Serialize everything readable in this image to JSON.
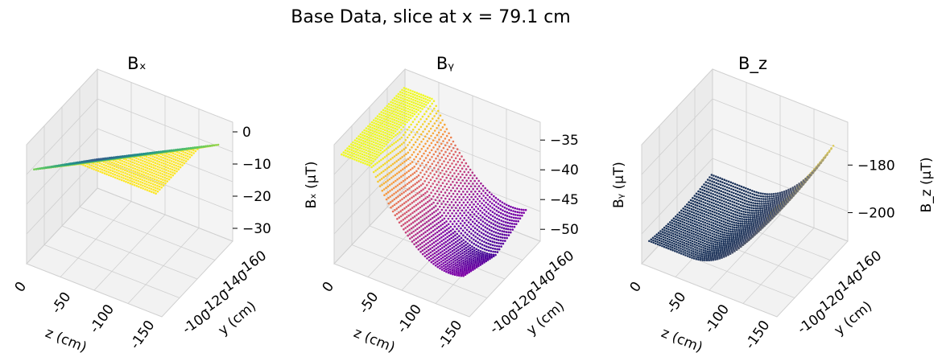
{
  "figure": {
    "suptitle": "Base Data, slice at x = 79.1 cm"
  },
  "chart_data": [
    {
      "type": "scatter3d",
      "title": "Bₓ",
      "colormap": "viridis",
      "xlabel": "z (cm)",
      "ylabel": "y (cm)",
      "zlabel": "Bₓ (µT)",
      "x_ticks": [
        "0",
        "-50",
        "-100",
        "-150"
      ],
      "y_ticks": [
        "-100",
        "-120",
        "-140",
        "-160"
      ],
      "z_ticks": [
        "0",
        "−10",
        "−20",
        "−30"
      ],
      "xlim": [
        0,
        -180
      ],
      "ylim": [
        -90,
        -170
      ],
      "zlim": [
        -34,
        3
      ],
      "model": {
        "kind": "plane",
        "c0": -15,
        "cx": -0.12,
        "cy": 0.25,
        "range": [
          -33,
          2
        ]
      },
      "grid": true
    },
    {
      "type": "scatter3d",
      "title": "Bᵧ",
      "colormap": "plasma",
      "xlabel": "z (cm)",
      "ylabel": "y (cm)",
      "zlabel": "Bᵧ (µT)",
      "x_ticks": [
        "0",
        "-50",
        "-100",
        "-150"
      ],
      "y_ticks": [
        "-100",
        "-120",
        "-140",
        "-160"
      ],
      "z_ticks": [
        "−35",
        "−40",
        "−45",
        "−50"
      ],
      "xlim": [
        0,
        -180
      ],
      "ylim": [
        -90,
        -170
      ],
      "zlim": [
        -52,
        -32
      ],
      "model": {
        "kind": "saddle",
        "c0": -49,
        "x0": -150,
        "ax": 0.0012,
        "ay": 0.04,
        "range": [
          -51,
          -34
        ]
      },
      "grid": true
    },
    {
      "type": "scatter3d",
      "title": "B_z",
      "colormap": "cividis",
      "xlabel": "z (cm)",
      "ylabel": "y (cm)",
      "zlabel": "B_z (µT)",
      "x_ticks": [
        "0",
        "-50",
        "-100",
        "-150"
      ],
      "y_ticks": [
        "-100",
        "-120",
        "-140",
        "-160"
      ],
      "z_ticks": [
        "−180",
        "−200"
      ],
      "z_tick_values": [
        -180,
        -200
      ],
      "xlim": [
        0,
        -180
      ],
      "ylim": [
        -90,
        -170
      ],
      "zlim": [
        -212,
        -162
      ],
      "model": {
        "kind": "bowl",
        "c0": -205,
        "x0": -60,
        "ax": 0.0028,
        "ay": 0.05,
        "range": [
          -208,
          -166
        ]
      },
      "grid": true
    }
  ]
}
